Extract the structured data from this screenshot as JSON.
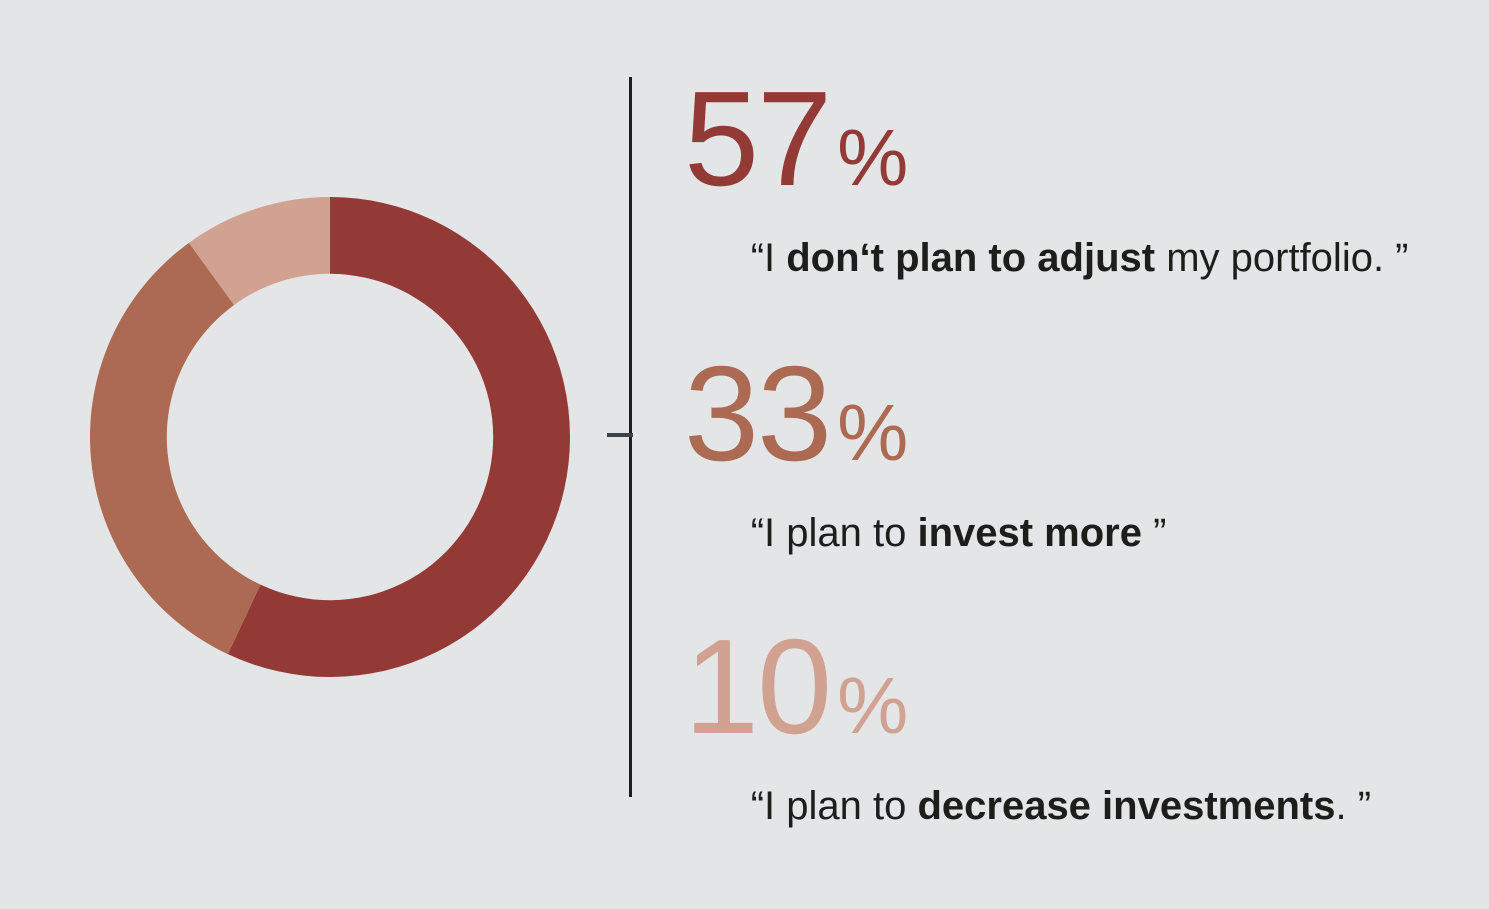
{
  "background_color": "#e4e5e6",
  "text_color": "#1d1d1b",
  "divider": {
    "line_color": "#1d1d1b",
    "tick_color": "#3c4246"
  },
  "chart_data": {
    "type": "donut",
    "title": "",
    "unit": "%",
    "start_angle_deg": 0,
    "direction": "clockwise",
    "inner_radius_ratio": 0.68,
    "segments": [
      {
        "value": 57,
        "color": "#933a36",
        "quote_prefix": "“I ",
        "quote_bold": "don‘t plan to adjust",
        "quote_suffix": " my portfolio. ”"
      },
      {
        "value": 33,
        "color": "#ac6a52",
        "quote_prefix": "“I plan to ",
        "quote_bold": "invest more",
        "quote_suffix": " ”"
      },
      {
        "value": 10,
        "color": "#d1a192",
        "quote_prefix": "“I plan to ",
        "quote_bold": "decrease investments",
        "quote_suffix": ". ”"
      }
    ]
  }
}
